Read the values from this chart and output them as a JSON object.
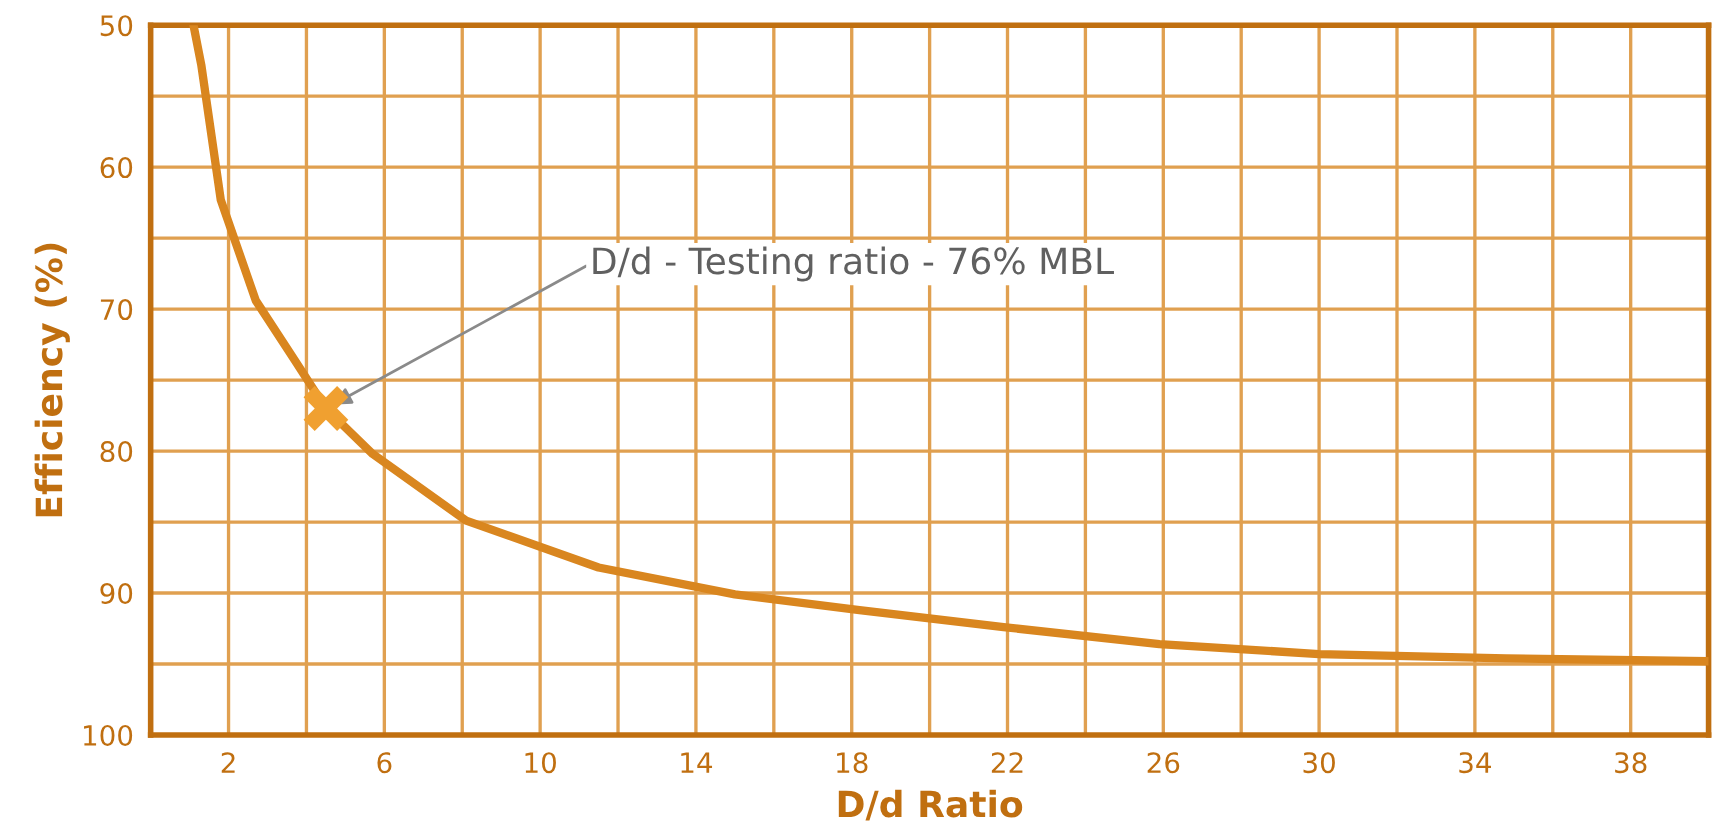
{
  "chart_data": {
    "type": "line",
    "xlabel": "D/d Ratio",
    "ylabel": "Efficiency (%)",
    "xlim": [
      0,
      40
    ],
    "ylim": [
      100,
      50
    ],
    "xticks": [
      2,
      {
        "value": 4,
        "label": null
      },
      6,
      {
        "value": 8,
        "label": null
      },
      10,
      {
        "value": 12,
        "label": null
      },
      14,
      {
        "value": 16,
        "label": null
      },
      18,
      {
        "value": 20,
        "label": null
      },
      22,
      {
        "value": 24,
        "label": null
      },
      26,
      {
        "value": 28,
        "label": null
      },
      30,
      {
        "value": 32,
        "label": null
      },
      34,
      {
        "value": 36,
        "label": null
      },
      38
    ],
    "yticks": [
      50,
      {
        "value": 55,
        "label": null
      },
      60,
      {
        "value": 65,
        "label": null
      },
      70,
      {
        "value": 75,
        "label": null
      },
      80,
      {
        "value": 85,
        "label": null
      },
      90,
      {
        "value": 95,
        "label": null
      },
      100
    ],
    "grid": true,
    "series": [
      {
        "color": "#d9861f",
        "marker": "none",
        "x": [
          1.1,
          1.3,
          1.8,
          2.7,
          3.7,
          4.5,
          5.7,
          8.1,
          11.5,
          15,
          18.2,
          21.9,
          25.9,
          30,
          34.8,
          39.9
        ],
        "values": [
          50,
          52.8,
          62.3,
          69.4,
          73.6,
          77,
          80.2,
          84.9,
          88.2,
          90.1,
          91.2,
          92.4,
          93.6,
          94.3,
          94.6,
          94.8
        ]
      },
      {
        "type": "scatter",
        "color": "#f0a030",
        "marker": "cross",
        "x": [
          4.5
        ],
        "values": [
          77
        ]
      }
    ],
    "annotations": [
      {
        "text": "D/d - Testing ratio - 76% MBL",
        "x": 4.5,
        "y": 77
      }
    ]
  }
}
